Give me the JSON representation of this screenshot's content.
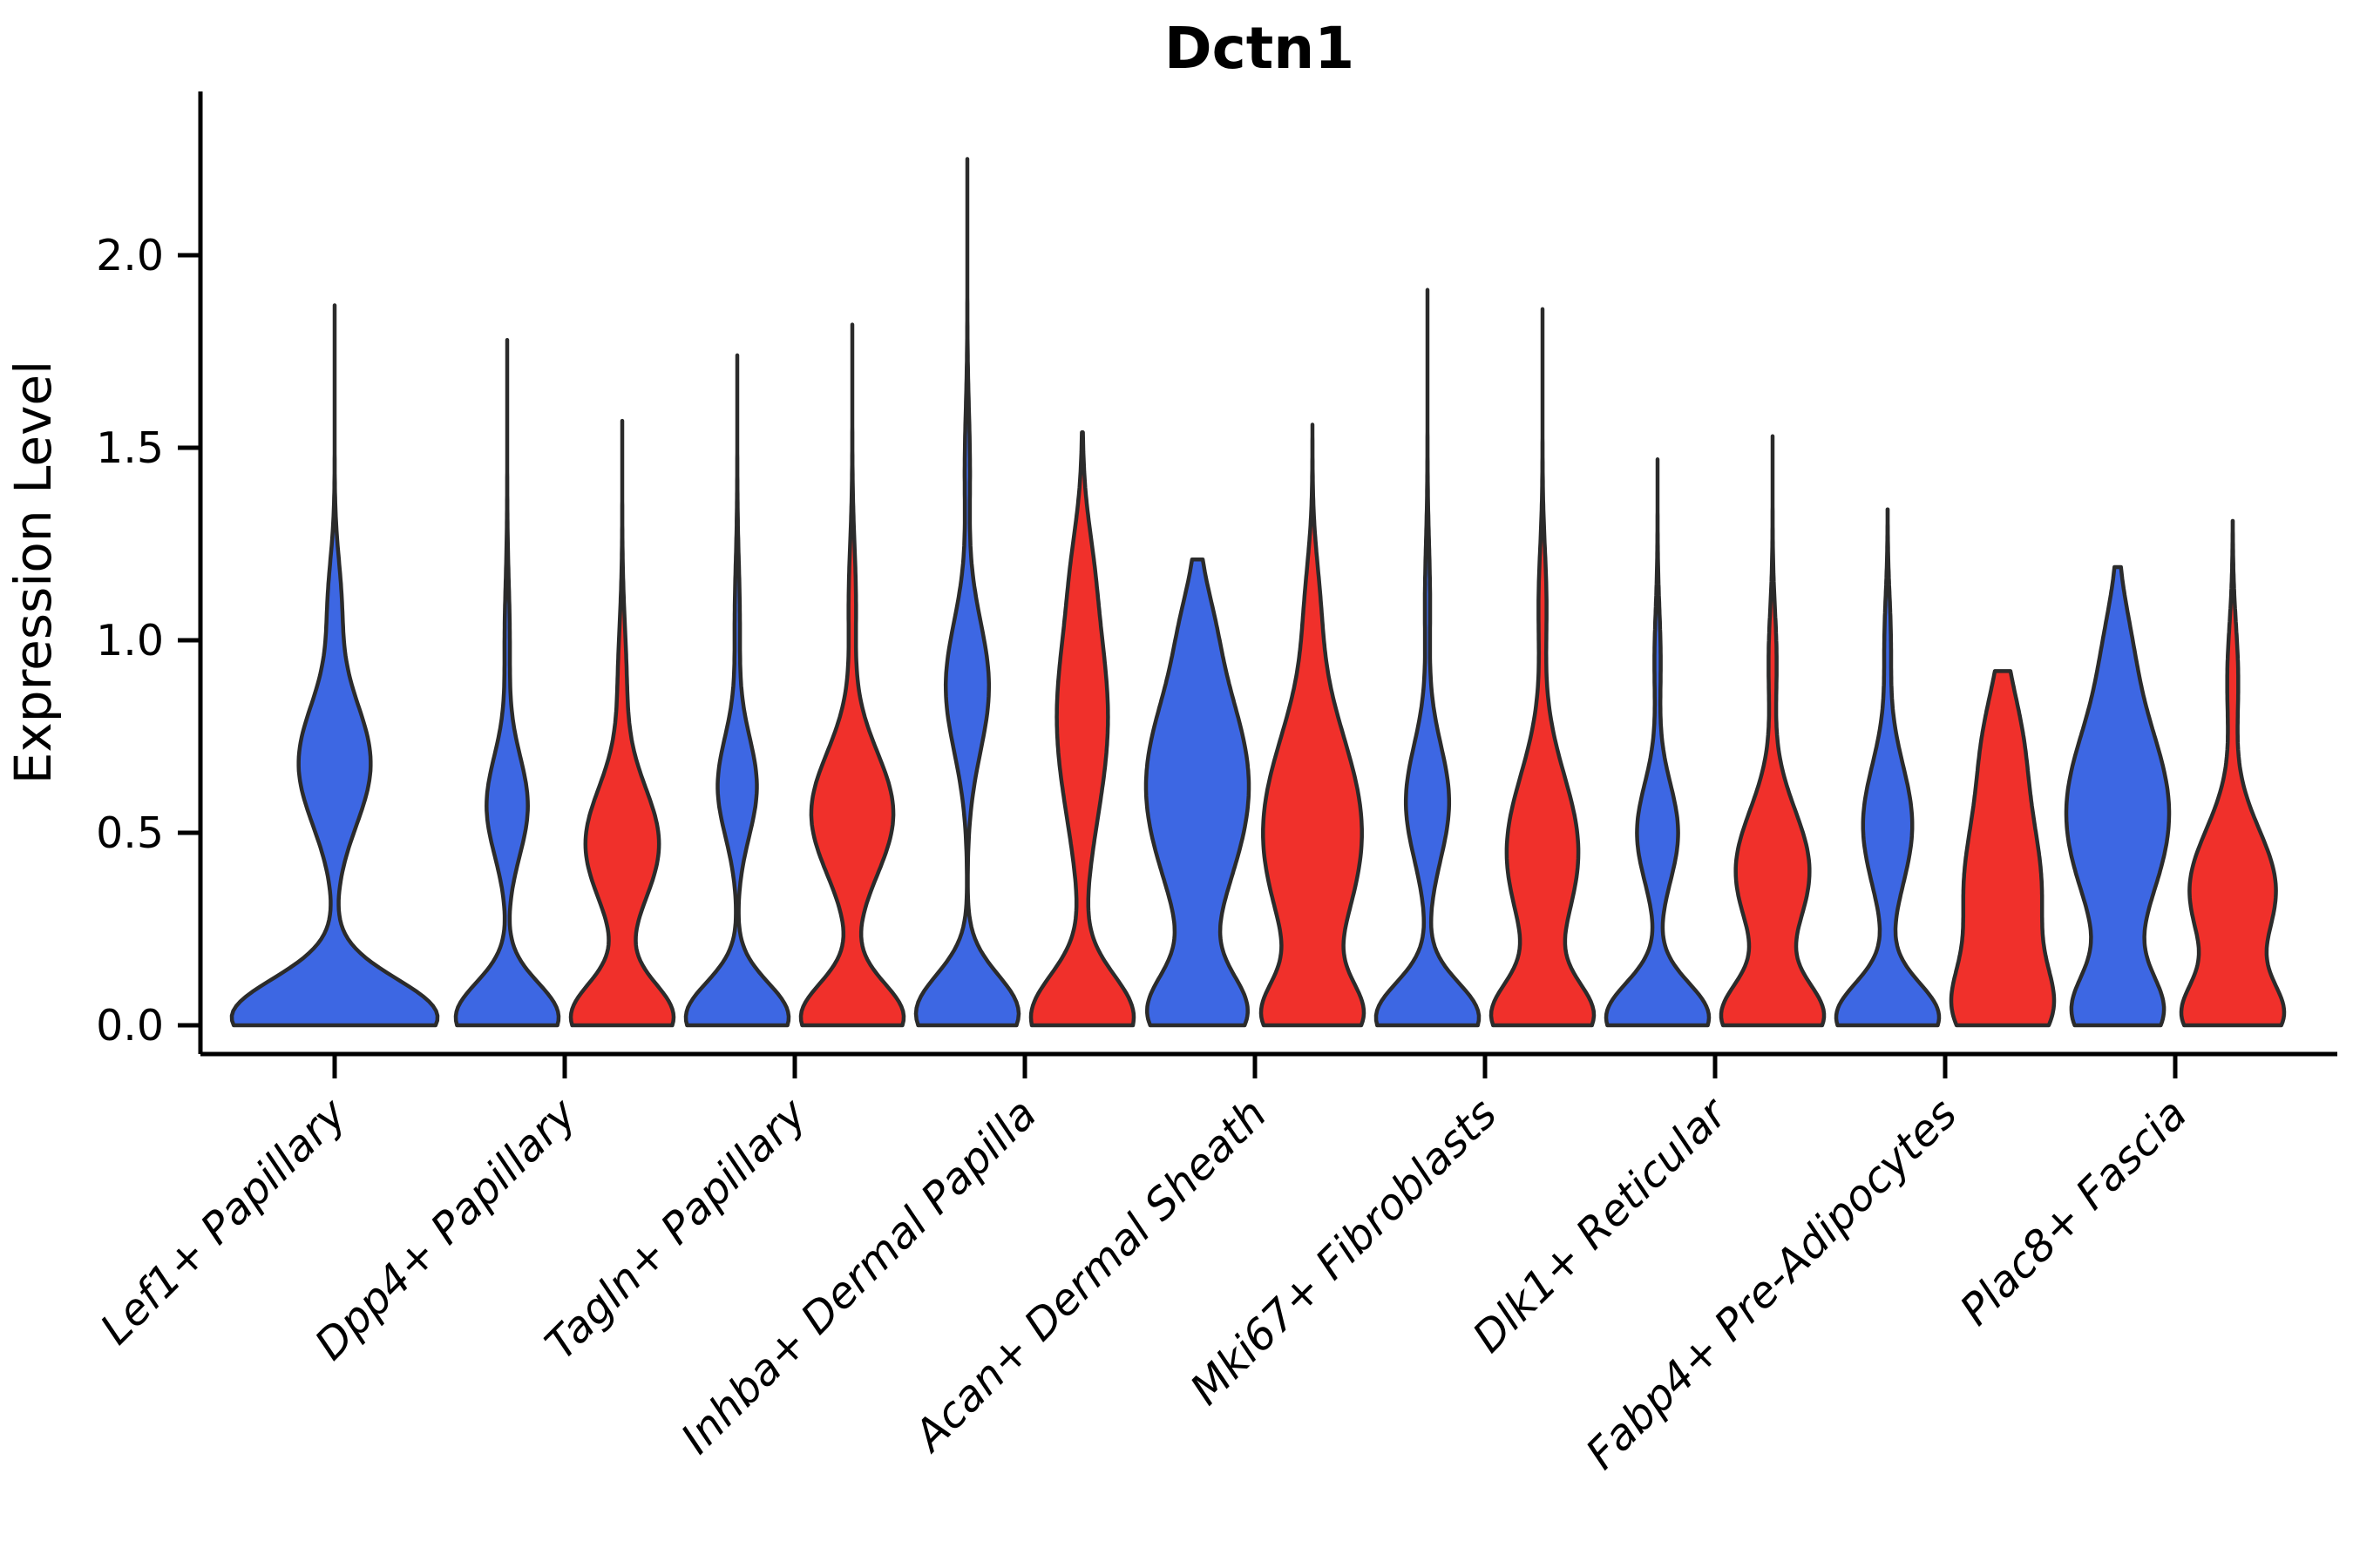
{
  "title": "Dctn1",
  "ylabel": "Expression Level",
  "colors": {
    "blue": "#3D67E3",
    "red": "#F0302B",
    "outline": "#2B2B2B",
    "axis": "#000000"
  },
  "chart_data": {
    "type": "violin",
    "title": "Dctn1",
    "xlabel": "",
    "ylabel": "Expression Level",
    "ylim": [
      0,
      2.43
    ],
    "yticks": [
      0.0,
      0.5,
      1.0,
      1.5,
      2.0
    ],
    "ytick_labels": [
      "0.0",
      "0.5",
      "1.0",
      "1.5",
      "2.0"
    ],
    "grid": "off",
    "legend": "none",
    "xtick_rotation_deg": 45,
    "categories": [
      "Lef1+ Papillary",
      "Dpp4+ Papillary",
      "Tagln+ Papillary",
      "Inhba+ Dermal Papilla",
      "Acan+ Dermal Sheath",
      "Mki67+ Fibroblasts",
      "Dlk1+ Reticular",
      "Fabp4+ Pre-Adipocytes",
      "Plac8+ Fascia"
    ],
    "series": [
      {
        "name": "group-blue",
        "color": "#3D67E3"
      },
      {
        "name": "group-red",
        "color": "#F0302B"
      }
    ],
    "groups": [
      {
        "category": "Lef1+ Papillary",
        "violins": [
          {
            "series": "group-blue",
            "position": "center",
            "width": "full",
            "max_expression": 1.87,
            "capped_top": false,
            "density_bumps": [
              [
                0.02,
                0.1,
                1.0
              ],
              [
                0.68,
                0.16,
                0.35
              ],
              [
                1.1,
                0.12,
                0.06
              ]
            ]
          }
        ]
      },
      {
        "category": "Dpp4+ Papillary",
        "violins": [
          {
            "series": "group-blue",
            "position": "left",
            "width": "half",
            "max_expression": 1.78,
            "capped_top": false,
            "density_bumps": [
              [
                0.02,
                0.09,
                1.0
              ],
              [
                0.57,
                0.13,
                0.4
              ],
              [
                1.0,
                0.15,
                0.05
              ]
            ]
          },
          {
            "series": "group-red",
            "position": "right",
            "width": "half",
            "max_expression": 1.57,
            "capped_top": false,
            "density_bumps": [
              [
                0.02,
                0.09,
                1.0
              ],
              [
                0.47,
                0.15,
                0.72
              ],
              [
                0.9,
                0.15,
                0.08
              ]
            ]
          }
        ]
      },
      {
        "category": "Tagln+ Papillary",
        "violins": [
          {
            "series": "group-blue",
            "position": "left",
            "width": "half",
            "max_expression": 1.74,
            "capped_top": false,
            "density_bumps": [
              [
                0.02,
                0.09,
                1.0
              ],
              [
                0.62,
                0.13,
                0.38
              ],
              [
                1.05,
                0.15,
                0.05
              ]
            ]
          },
          {
            "series": "group-red",
            "position": "right",
            "width": "half",
            "max_expression": 1.82,
            "capped_top": false,
            "density_bumps": [
              [
                0.02,
                0.09,
                1.0
              ],
              [
                0.55,
                0.16,
                0.8
              ],
              [
                1.1,
                0.15,
                0.07
              ]
            ]
          }
        ]
      },
      {
        "category": "Inhba+ Dermal Papilla",
        "violins": [
          {
            "series": "group-blue",
            "position": "left",
            "width": "half",
            "max_expression": 2.25,
            "capped_top": false,
            "density_bumps": [
              [
                0.03,
                0.1,
                1.0
              ],
              [
                0.88,
                0.17,
                0.42
              ],
              [
                1.45,
                0.15,
                0.05
              ]
            ]
          },
          {
            "series": "group-red",
            "position": "right",
            "width": "half",
            "max_expression": 1.54,
            "capped_top": false,
            "density_bumps": [
              [
                0.02,
                0.11,
                1.0
              ],
              [
                0.8,
                0.26,
                0.5
              ],
              [
                1.2,
                0.12,
                0.08
              ]
            ]
          }
        ]
      },
      {
        "category": "Acan+ Dermal Sheath",
        "violins": [
          {
            "series": "group-blue",
            "position": "left",
            "width": "half",
            "max_expression": 1.21,
            "capped_top": true,
            "density_bumps": [
              [
                0.03,
                0.1,
                0.9
              ],
              [
                0.62,
                0.26,
                1.0
              ],
              [
                1.05,
                0.1,
                0.1
              ]
            ]
          },
          {
            "series": "group-red",
            "position": "right",
            "width": "half",
            "max_expression": 1.56,
            "capped_top": false,
            "density_bumps": [
              [
                0.02,
                0.09,
                0.85
              ],
              [
                0.5,
                0.26,
                1.0
              ],
              [
                1.1,
                0.13,
                0.1
              ]
            ]
          }
        ]
      },
      {
        "category": "Mki67+ Fibroblasts",
        "violins": [
          {
            "series": "group-blue",
            "position": "left",
            "width": "half",
            "max_expression": 1.91,
            "capped_top": false,
            "density_bumps": [
              [
                0.02,
                0.09,
                1.0
              ],
              [
                0.58,
                0.15,
                0.42
              ],
              [
                1.1,
                0.15,
                0.05
              ]
            ]
          },
          {
            "series": "group-red",
            "position": "right",
            "width": "half",
            "max_expression": 1.86,
            "capped_top": false,
            "density_bumps": [
              [
                0.02,
                0.09,
                1.0
              ],
              [
                0.45,
                0.2,
                0.75
              ],
              [
                1.1,
                0.14,
                0.08
              ]
            ]
          }
        ]
      },
      {
        "category": "Dlk1+ Reticular",
        "violins": [
          {
            "series": "group-blue",
            "position": "left",
            "width": "half",
            "max_expression": 1.47,
            "capped_top": false,
            "density_bumps": [
              [
                0.02,
                0.09,
                1.0
              ],
              [
                0.5,
                0.13,
                0.4
              ],
              [
                0.95,
                0.13,
                0.06
              ]
            ]
          },
          {
            "series": "group-red",
            "position": "right",
            "width": "half",
            "max_expression": 1.53,
            "capped_top": false,
            "density_bumps": [
              [
                0.02,
                0.09,
                1.0
              ],
              [
                0.4,
                0.16,
                0.75
              ],
              [
                0.95,
                0.13,
                0.08
              ]
            ]
          }
        ]
      },
      {
        "category": "Fabp4+ Pre-Adipocytes",
        "violins": [
          {
            "series": "group-blue",
            "position": "left",
            "width": "half",
            "max_expression": 1.34,
            "capped_top": false,
            "density_bumps": [
              [
                0.02,
                0.09,
                1.0
              ],
              [
                0.52,
                0.16,
                0.48
              ],
              [
                1.0,
                0.12,
                0.06
              ]
            ]
          },
          {
            "series": "group-red",
            "position": "right",
            "width": "half",
            "max_expression": 0.92,
            "capped_top": true,
            "density_bumps": [
              [
                0.03,
                0.11,
                0.95
              ],
              [
                0.35,
                0.22,
                1.0
              ],
              [
                0.75,
                0.14,
                0.35
              ]
            ]
          }
        ]
      },
      {
        "category": "Plac8+ Fascia",
        "violins": [
          {
            "series": "group-blue",
            "position": "left",
            "width": "half",
            "max_expression": 1.19,
            "capped_top": true,
            "density_bumps": [
              [
                0.03,
                0.1,
                0.8
              ],
              [
                0.55,
                0.24,
                1.0
              ],
              [
                1.0,
                0.12,
                0.12
              ]
            ]
          },
          {
            "series": "group-red",
            "position": "right",
            "width": "half",
            "max_expression": 1.31,
            "capped_top": false,
            "density_bumps": [
              [
                0.02,
                0.09,
                0.85
              ],
              [
                0.35,
                0.16,
                0.8
              ],
              [
                0.9,
                0.14,
                0.1
              ]
            ]
          }
        ]
      }
    ]
  }
}
